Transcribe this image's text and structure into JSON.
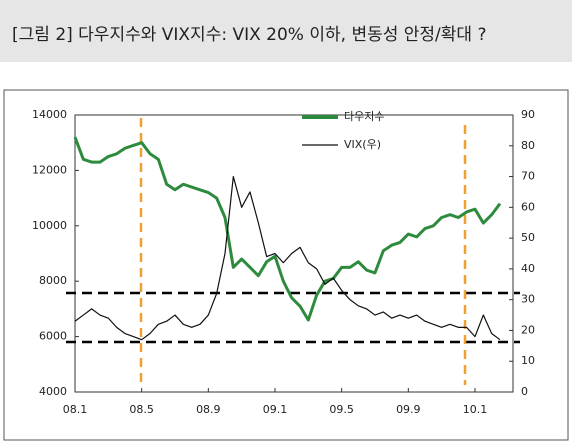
{
  "chart_data": {
    "type": "line",
    "title": "[그림 2] 다우지수와 VIX지수: VIX 20% 이하, 변동성 안정/확대 ?",
    "categories": [
      "08.1",
      null,
      null,
      null,
      null,
      null,
      null,
      null,
      "08.5",
      null,
      null,
      null,
      null,
      null,
      null,
      null,
      "08.9",
      null,
      null,
      null,
      null,
      null,
      null,
      null,
      "09.1",
      null,
      null,
      null,
      null,
      null,
      null,
      null,
      "09.5",
      null,
      null,
      null,
      null,
      null,
      null,
      null,
      "09.9",
      null,
      null,
      null,
      null,
      null,
      null,
      null,
      "10.1",
      null,
      null,
      null
    ],
    "series": [
      {
        "name": "다우지수",
        "color": "#2e8b3e",
        "values": [
          13200,
          12400,
          12300,
          12300,
          12500,
          12600,
          12800,
          12900,
          13000,
          12600,
          12400,
          11500,
          11300,
          11500,
          11400,
          11300,
          11200,
          11000,
          10300,
          8500,
          8800,
          8500,
          8200,
          8700,
          8900,
          8000,
          7400,
          7100,
          6600,
          7500,
          8000,
          8100,
          8500,
          8500,
          8700,
          8400,
          8300,
          9100,
          9300,
          9400,
          9700,
          9600,
          9900,
          10000,
          10300,
          10400,
          10300,
          10500,
          10600,
          10100,
          10400,
          10800
        ]
      },
      {
        "name": "VIX(우)",
        "color": "#111111",
        "axis": "y2",
        "values": [
          23,
          25,
          27,
          25,
          24,
          21,
          19,
          18,
          17,
          19,
          22,
          23,
          25,
          22,
          21,
          22,
          25,
          32,
          45,
          70,
          60,
          65,
          55,
          44,
          45,
          42,
          45,
          47,
          42,
          40,
          35,
          37,
          33,
          30,
          28,
          27,
          25,
          26,
          24,
          25,
          24,
          25,
          23,
          22,
          21,
          22,
          21,
          21,
          18,
          25,
          19,
          17
        ]
      }
    ],
    "ylim": [
      4000,
      14000
    ],
    "yticks": [
      4000,
      6000,
      8000,
      10000,
      12000,
      14000
    ],
    "y2lim": [
      0,
      90
    ],
    "y2ticks": [
      0,
      10,
      20,
      30,
      40,
      50,
      60,
      70,
      80,
      90
    ]
  }
}
